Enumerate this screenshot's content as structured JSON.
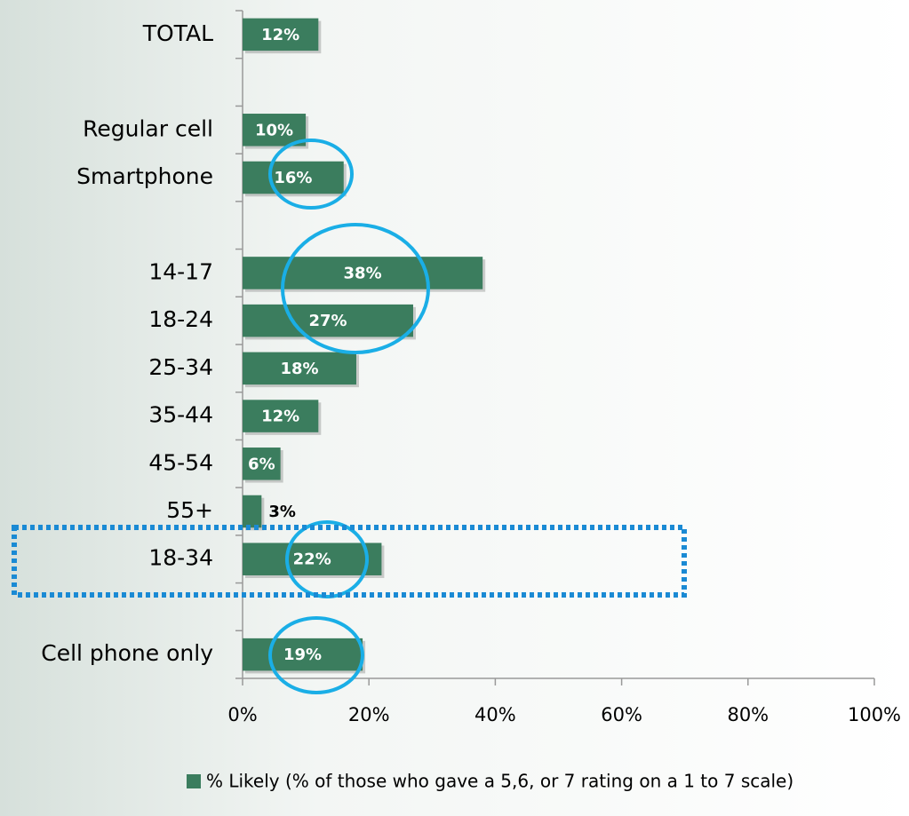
{
  "chart_data": {
    "type": "barh",
    "categories": [
      "TOTAL",
      null,
      "Regular cell",
      "Smartphone",
      null,
      "14-17",
      "18-24",
      "25-34",
      "35-44",
      "45-54",
      "55+",
      "18-34",
      null,
      "Cell phone only"
    ],
    "series": [
      {
        "name": "% Likely (% of those who gave a 5,6, or 7 rating on a 1 to 7 scale)",
        "color": "#3b7d5e",
        "values": [
          12,
          null,
          10,
          16,
          null,
          38,
          27,
          18,
          12,
          6,
          3,
          22,
          null,
          19
        ],
        "value_labels": [
          "12%",
          null,
          "10%",
          "16%",
          null,
          "38%",
          "27%",
          "18%",
          "12%",
          "6%",
          "3%",
          "22%",
          null,
          "19%"
        ]
      }
    ],
    "xlim": [
      0,
      100
    ],
    "xticks": [
      {
        "value": 0,
        "label": "0%"
      },
      {
        "value": 20,
        "label": "20%"
      },
      {
        "value": 40,
        "label": "40%"
      },
      {
        "value": 60,
        "label": "60%"
      },
      {
        "value": 80,
        "label": "80%"
      },
      {
        "value": 100,
        "label": "100%"
      }
    ],
    "grid": false,
    "legend": "bottom"
  }
}
